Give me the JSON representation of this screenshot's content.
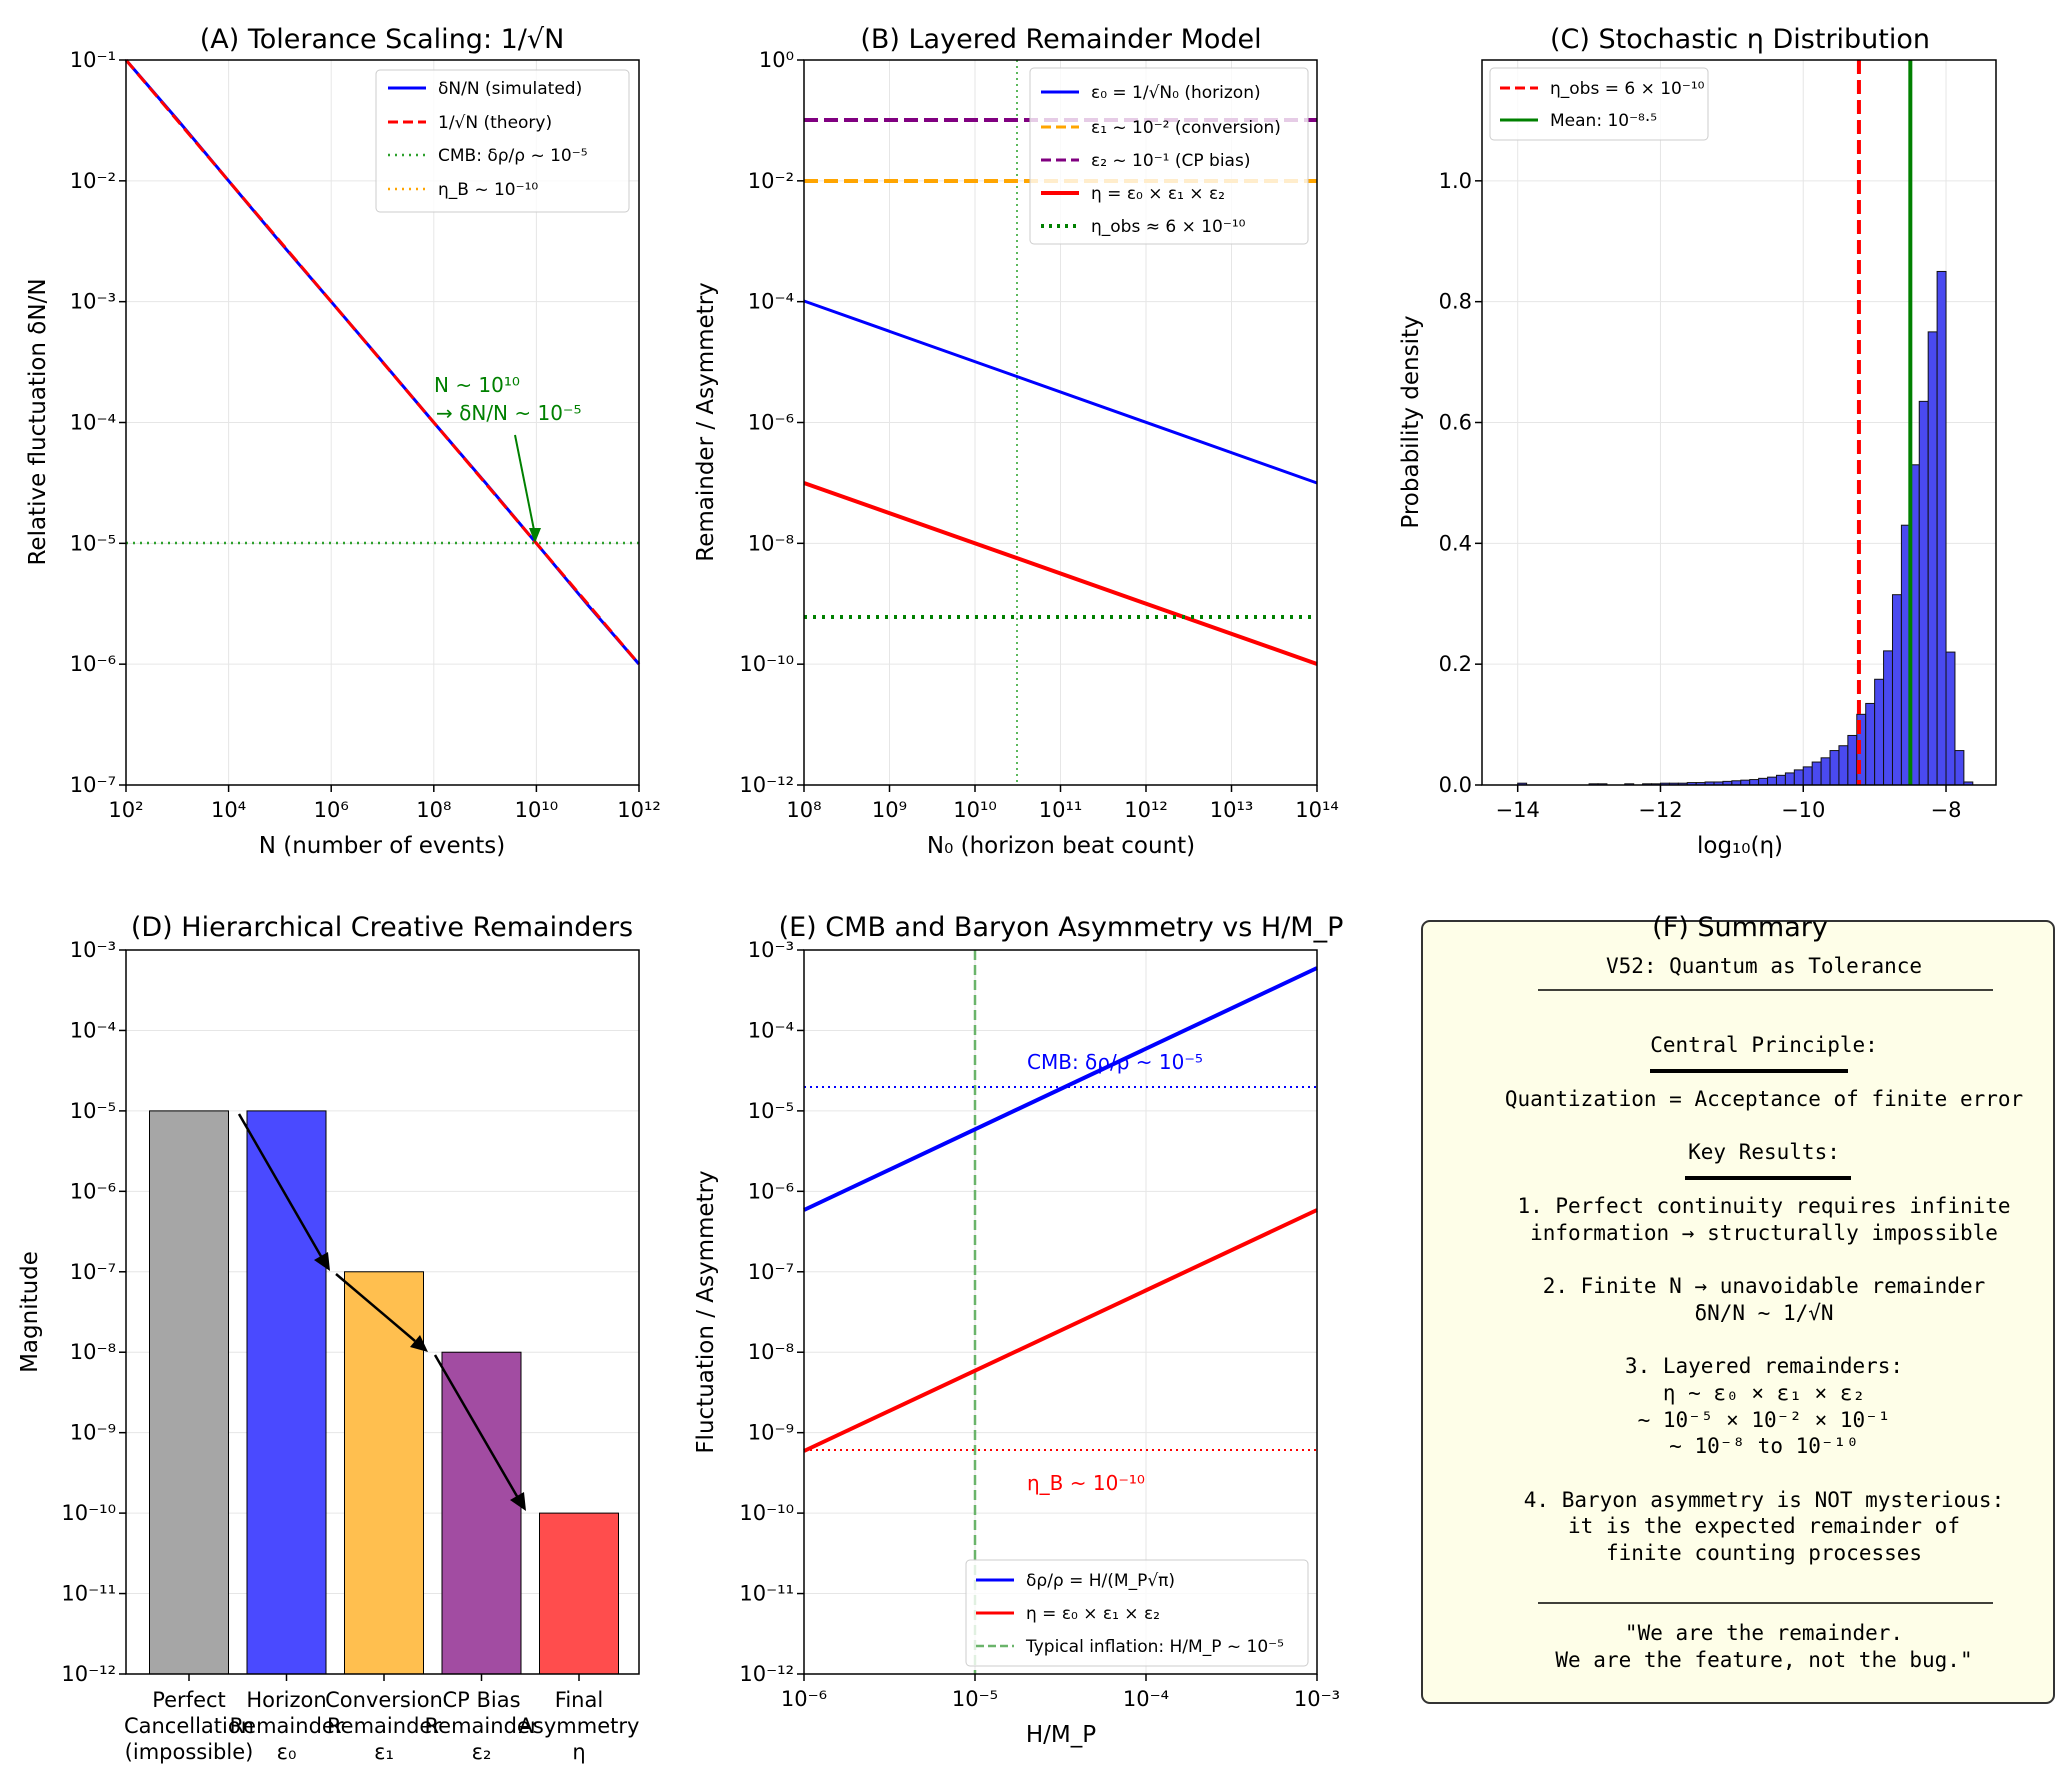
{
  "chart_data": [
    {
      "id": "A",
      "type": "line",
      "title": "(A) Tolerance Scaling: 1/√N",
      "xlabel": "N (number of events)",
      "ylabel": "Relative fluctuation δN/N",
      "xscale": "log",
      "yscale": "log",
      "xlim": [
        100.0,
        1000000000000.0
      ],
      "ylim": [
        1e-07,
        0.1
      ],
      "xticks": [
        "10²",
        "10⁴",
        "10⁶",
        "10⁸",
        "10¹⁰",
        "10¹²"
      ],
      "yticks": [
        "10⁻⁷",
        "10⁻⁶",
        "10⁻⁵",
        "10⁻⁴",
        "10⁻³",
        "10⁻²",
        "10⁻¹"
      ],
      "grid": true,
      "legend_loc": "upper right",
      "series": [
        {
          "name": "δN/N (simulated)",
          "style": "solid",
          "color": "#0000ff",
          "x": [
            100.0,
            1000.0,
            10000.0,
            100000.0,
            1000000.0,
            10000000.0,
            100000000.0,
            1000000000.0,
            10000000000.0,
            100000000000.0,
            1000000000000.0
          ],
          "y": [
            0.1,
            0.0322,
            0.01,
            0.00312,
            0.001,
            0.000318,
            0.0001,
            3.2e-05,
            1e-05,
            3.1e-06,
            1e-06
          ]
        },
        {
          "name": "1/√N (theory)",
          "style": "dashed",
          "color": "#ff0000",
          "x": [
            100.0,
            1000000000000.0
          ],
          "y": [
            0.1,
            1e-06
          ]
        },
        {
          "name": "CMB: δρ/ρ ~ 10⁻⁵",
          "style": "dotted",
          "color": "#2ca02c",
          "hline": 1e-05
        },
        {
          "name": "η_B ~ 10⁻¹⁰",
          "style": "dotted",
          "color": "#ffa500",
          "hline": 1e-10
        }
      ],
      "annotation": {
        "line1": "N ~ 10¹⁰",
        "line2": "→ δN/N ~ 10⁻⁵",
        "color": "#008000",
        "point": [
          10000000000.0,
          1e-05
        ]
      }
    },
    {
      "id": "B",
      "type": "line",
      "title": "(B) Layered Remainder Model",
      "xlabel": "N₀ (horizon beat count)",
      "ylabel": "Remainder / Asymmetry",
      "xscale": "log",
      "yscale": "log",
      "xlim": [
        100000000.0,
        100000000000000.0
      ],
      "ylim": [
        1e-12,
        1
      ],
      "xticks": [
        "10⁸",
        "10⁹",
        "10¹⁰",
        "10¹¹",
        "10¹²",
        "10¹³",
        "10¹⁴"
      ],
      "yticks": [
        "10⁻¹²",
        "10⁻¹⁰",
        "10⁻⁸",
        "10⁻⁶",
        "10⁻⁴",
        "10⁻²",
        "10⁰"
      ],
      "grid": true,
      "legend_loc": "upper right",
      "vline": 32000000000.0,
      "series": [
        {
          "name": "ε₀ = 1/√N₀ (horizon)",
          "style": "solid",
          "color": "#0000ff",
          "x": [
            100000000.0,
            100000000000000.0
          ],
          "y": [
            0.0001,
            1e-07
          ]
        },
        {
          "name": "ε₁ ~ 10⁻² (conversion)",
          "style": "dashed",
          "color": "#ffa500",
          "hline": 0.01
        },
        {
          "name": "ε₂ ~ 10⁻¹ (CP bias)",
          "style": "dashed",
          "color": "#800080",
          "hline": 0.1
        },
        {
          "name": "η = ε₀ × ε₁ × ε₂",
          "style": "solid",
          "color": "#ff0000",
          "x": [
            100000000.0,
            100000000000000.0
          ],
          "y": [
            1e-07,
            1e-10
          ]
        },
        {
          "name": "η_obs ≈ 6 × 10⁻¹⁰",
          "style": "dotted",
          "color": "#008000",
          "hline": 6e-10
        }
      ]
    },
    {
      "id": "C",
      "type": "bar",
      "subtype": "histogram",
      "title": "(C) Stochastic η Distribution",
      "xlabel": "log₁₀(η)",
      "ylabel": "Probability density",
      "xlim": [
        -14.5,
        -7.3
      ],
      "ylim": [
        0,
        1.2
      ],
      "xticks": [
        "−14",
        "−12",
        "−10",
        "−8"
      ],
      "yticks": [
        "0.0",
        "0.2",
        "0.4",
        "0.6",
        "0.8",
        "1.0"
      ],
      "grid": true,
      "legend_loc": "upper left",
      "bin_width": 0.125,
      "bins": [
        [
          -14.0,
          0.003
        ],
        [
          -13.0,
          0.002
        ],
        [
          -12.875,
          0.002
        ],
        [
          -12.5,
          0.002
        ],
        [
          -12.25,
          0.002
        ],
        [
          -12.125,
          0.002
        ],
        [
          -12.0,
          0.003
        ],
        [
          -11.875,
          0.003
        ],
        [
          -11.75,
          0.003
        ],
        [
          -11.625,
          0.004
        ],
        [
          -11.5,
          0.004
        ],
        [
          -11.375,
          0.005
        ],
        [
          -11.25,
          0.005
        ],
        [
          -11.125,
          0.006
        ],
        [
          -11.0,
          0.007
        ],
        [
          -10.875,
          0.008
        ],
        [
          -10.75,
          0.009
        ],
        [
          -10.625,
          0.011
        ],
        [
          -10.5,
          0.013
        ],
        [
          -10.375,
          0.016
        ],
        [
          -10.25,
          0.02
        ],
        [
          -10.125,
          0.025
        ],
        [
          -10.0,
          0.03
        ],
        [
          -9.875,
          0.038
        ],
        [
          -9.75,
          0.045
        ],
        [
          -9.625,
          0.057
        ],
        [
          -9.5,
          0.065
        ],
        [
          -9.375,
          0.082
        ],
        [
          -9.25,
          0.117
        ],
        [
          -9.125,
          0.135
        ],
        [
          -9.0,
          0.175
        ],
        [
          -8.875,
          0.222
        ],
        [
          -8.75,
          0.315
        ],
        [
          -8.625,
          0.43
        ],
        [
          -8.5,
          0.53
        ],
        [
          -8.375,
          0.635
        ],
        [
          -8.25,
          0.75
        ],
        [
          -8.125,
          0.85
        ],
        [
          -8.0,
          0.22
        ],
        [
          -7.875,
          0.057
        ],
        [
          -7.75,
          0.005
        ]
      ],
      "series": [
        {
          "name": "η_obs = 6 × 10⁻¹⁰",
          "style": "dashed",
          "color": "#ff0000",
          "vline": -9.22
        },
        {
          "name": "Mean: 10⁻⁸·⁵",
          "style": "solid",
          "color": "#008000",
          "vline": -8.5
        }
      ]
    },
    {
      "id": "D",
      "type": "bar",
      "title": "(D) Hierarchical Creative Remainders",
      "xlabel": "",
      "ylabel": "Magnitude",
      "yscale": "log",
      "ylim": [
        1e-12,
        0.001
      ],
      "yticks": [
        "10⁻¹²",
        "10⁻¹¹",
        "10⁻¹⁰",
        "10⁻⁹",
        "10⁻⁸",
        "10⁻⁷",
        "10⁻⁶",
        "10⁻⁵",
        "10⁻⁴",
        "10⁻³"
      ],
      "grid": true,
      "categories": [
        [
          "Perfect",
          "Cancellation",
          "(impossible)"
        ],
        [
          "Horizon",
          "Remainder",
          "ε₀"
        ],
        [
          "Conversion",
          "Remainder",
          "ε₁"
        ],
        [
          "CP Bias",
          "Remainder",
          "ε₂"
        ],
        [
          "Final",
          "Asymmetry",
          "η"
        ]
      ],
      "values": [
        1e-05,
        1e-05,
        1e-07,
        1e-08,
        1e-10
      ],
      "colors": [
        "#a6a6a6",
        "#4a4aff",
        "#ffbf4f",
        "#a24ca2",
        "#ff4d4d"
      ]
    },
    {
      "id": "E",
      "type": "line",
      "title": "(E) CMB and Baryon Asymmetry vs H/M_P",
      "xlabel": "H/M_P",
      "ylabel": "Fluctuation / Asymmetry",
      "xscale": "log",
      "yscale": "log",
      "xlim": [
        1e-06,
        0.001
      ],
      "ylim": [
        1e-12,
        0.001
      ],
      "xticks": [
        "10⁻⁶",
        "10⁻⁵",
        "10⁻⁴",
        "10⁻³"
      ],
      "yticks": [
        "10⁻¹²",
        "10⁻¹¹",
        "10⁻¹⁰",
        "10⁻⁹",
        "10⁻⁸",
        "10⁻⁷",
        "10⁻⁶",
        "10⁻⁵",
        "10⁻⁴",
        "10⁻³"
      ],
      "grid": true,
      "legend_loc": "lower right",
      "series": [
        {
          "name": "δρ/ρ = H/(M_P√π)",
          "style": "solid",
          "color": "#0000ff",
          "x": [
            1e-06,
            0.001
          ],
          "y": [
            5.6e-07,
            0.00056
          ]
        },
        {
          "name": "η = ε₀ × ε₁ × ε₂",
          "style": "solid",
          "color": "#ff0000",
          "x": [
            1e-06,
            0.001
          ],
          "y": [
            5.6e-10,
            5.6e-07
          ]
        },
        {
          "name": "Typical inflation: H/M_P ~ 10⁻⁵",
          "style": "dashed",
          "color": "#6ab46a",
          "vline": 1e-05
        }
      ],
      "hlines": [
        {
          "y": 2e-05,
          "color": "#0000ff",
          "label": "CMB: δρ/ρ ~ 10⁻⁵"
        },
        {
          "y": 6e-10,
          "color": "#ff0000",
          "label": "η_B ~ 10⁻¹⁰"
        }
      ]
    }
  ],
  "summary": {
    "title": "(F) Summary",
    "heading": "V52: Quantum as Tolerance",
    "principle_label": "Central Principle:",
    "principle": "Quantization = Acceptance of finite error",
    "key_label": "Key Results:",
    "r1a": "1. Perfect continuity requires infinite",
    "r1b": "information → structurally impossible",
    "r2a": "2. Finite N → unavoidable remainder",
    "r2b": "δN/N ~ 1/√N",
    "r3a": "3. Layered remainders:",
    "r3b": "η ~ ε₀ × ε₁ × ε₂",
    "r3c": "~ 10⁻⁵ × 10⁻² × 10⁻¹",
    "r3d": "~ 10⁻⁸ to 10⁻¹⁰",
    "r4a": "4. Baryon asymmetry is NOT mysterious:",
    "r4b": "it is the expected remainder of",
    "r4c": "finite counting processes",
    "quote1": "\"We are the remainder.",
    "quote2": "We are the feature, not the bug.\""
  }
}
